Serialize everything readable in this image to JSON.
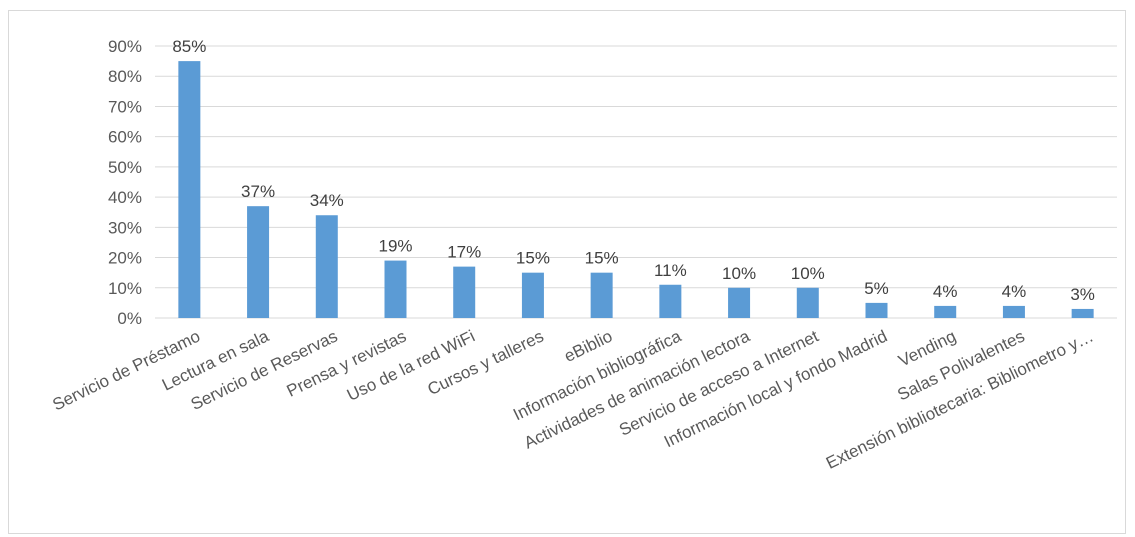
{
  "chart_data": {
    "type": "bar",
    "categories": [
      "Servicio de Préstamo",
      "Lectura en sala",
      "Servicio de Reservas",
      "Prensa y revistas",
      "Uso de la red WiFi",
      "Cursos y talleres",
      "eBiblio",
      "Información bibliográfica",
      "Actividades de animación lectora",
      "Servicio de acceso a Internet",
      "Información local y fondo Madrid",
      "Vending",
      "Salas Polivalentes",
      "Extensión bibliotecaria: Bibliometro y…"
    ],
    "values": [
      85,
      37,
      34,
      19,
      17,
      15,
      15,
      11,
      10,
      10,
      5,
      4,
      4,
      3
    ],
    "value_labels": [
      "85%",
      "37%",
      "34%",
      "19%",
      "17%",
      "15%",
      "15%",
      "11%",
      "10%",
      "10%",
      "5%",
      "4%",
      "4%",
      "3%"
    ],
    "y_ticks": [
      "0%",
      "10%",
      "20%",
      "30%",
      "40%",
      "50%",
      "60%",
      "70%",
      "80%",
      "90%"
    ],
    "ylim": [
      0,
      90
    ],
    "y_step": 10,
    "grid": true,
    "bar_color": "#5b9bd5"
  }
}
